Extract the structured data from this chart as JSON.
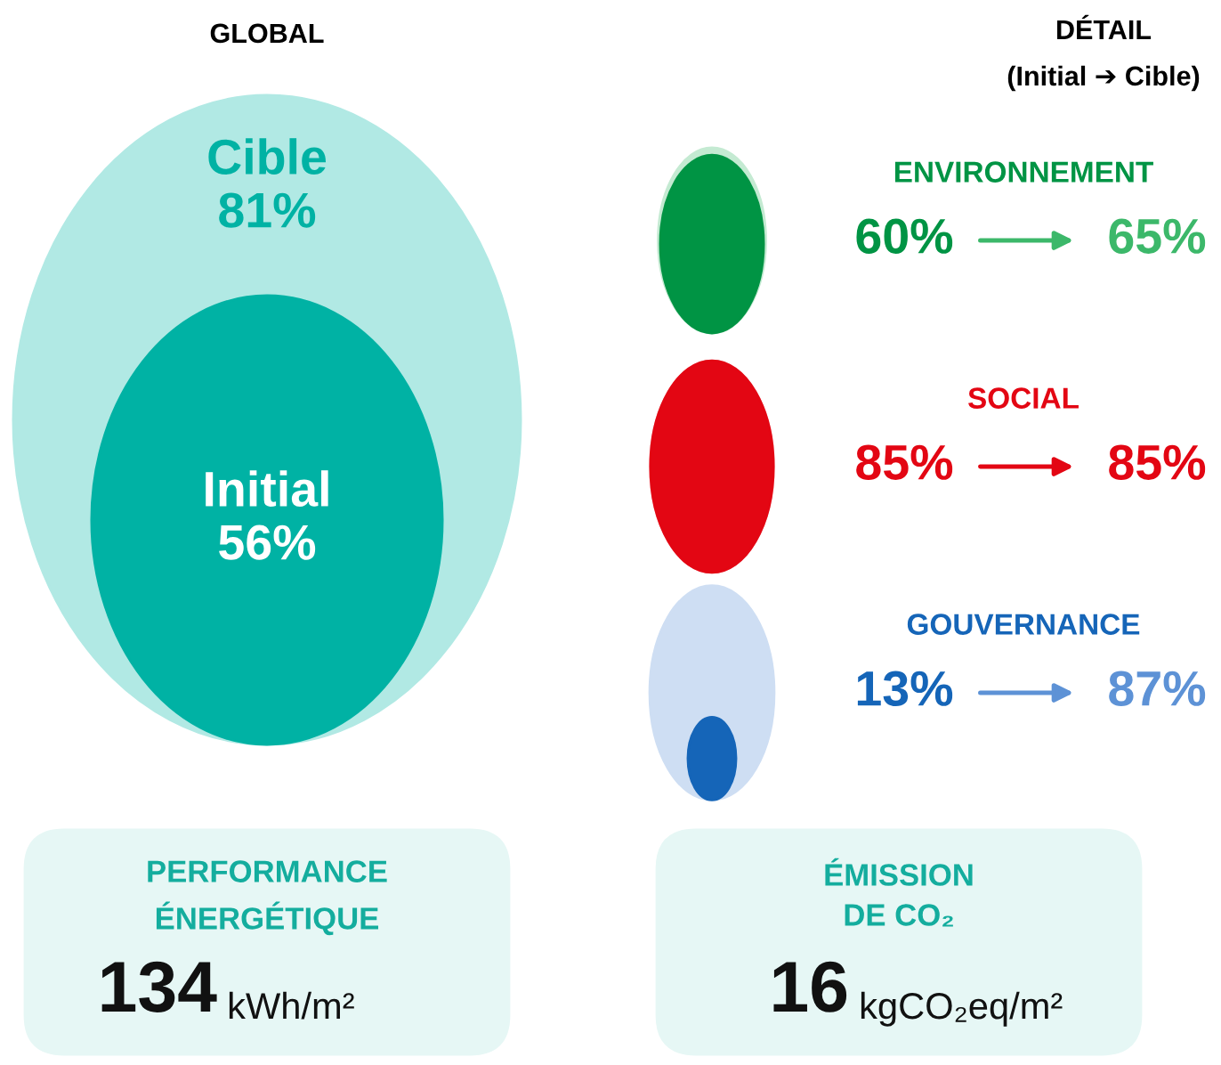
{
  "chart_data": [
    {
      "type": "other",
      "title": "GLOBAL",
      "series": [
        {
          "name": "Cible",
          "color": "#b1e9e4",
          "values": [
            81
          ],
          "value_labels": [
            "81%"
          ]
        },
        {
          "name": "Initial",
          "color": "#00b2a4",
          "values": [
            56
          ],
          "value_labels": [
            "56%"
          ]
        }
      ]
    },
    {
      "type": "other",
      "title": "DÉTAIL",
      "subtitle": "(Initial ➔ Cible)",
      "categories": [
        "ENVIRONNEMENT",
        "SOCIAL",
        "GOUVERNANCE"
      ],
      "series": [
        {
          "colors": [
            "#009444",
            "#e30613",
            "#1565b8"
          ],
          "values": [
            60,
            85,
            13
          ],
          "value_labels": [
            "60%",
            "85%",
            "13%"
          ]
        },
        {
          "colors": [
            "#3cb86a",
            "#e30613",
            "#5d92d6"
          ],
          "values": [
            65,
            85,
            87
          ],
          "value_labels": [
            "65%",
            "85%",
            "87%"
          ]
        }
      ]
    },
    {
      "type": "other",
      "title": "PERFORMANCE\nÉNERGÉTIQUE",
      "color": "#e6f7f5",
      "annotations": [
        "134",
        "kWh/m²"
      ]
    },
    {
      "type": "other",
      "title": "ÉMISSION\nDE CO₂",
      "color": "#e6f7f5",
      "annotations": [
        "16",
        "kgCO₂eq/m²"
      ]
    }
  ]
}
